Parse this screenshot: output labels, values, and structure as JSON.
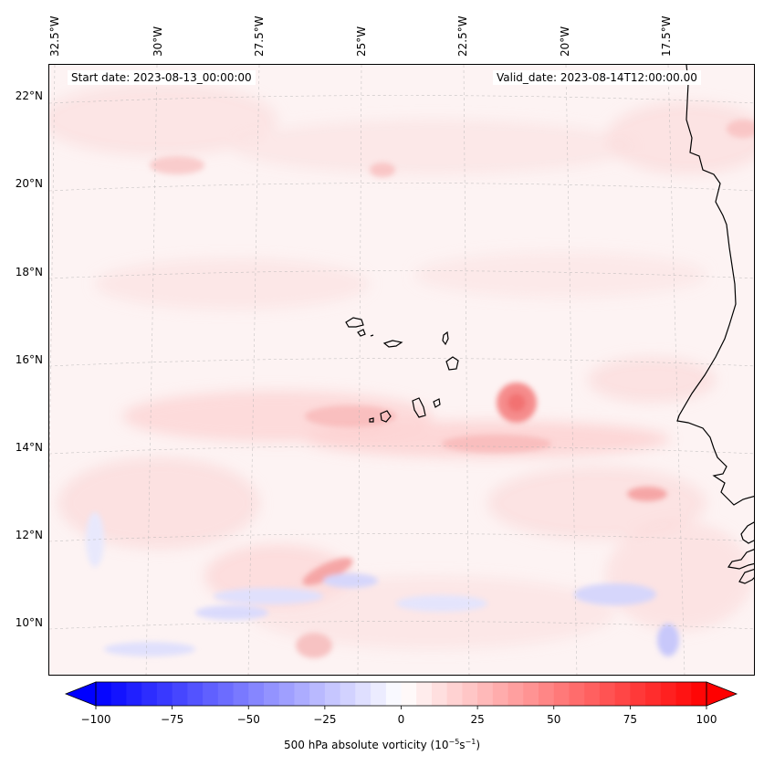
{
  "map": {
    "start_date": "Start date: 2023-08-13_00:00:00",
    "valid_date": "Valid_date: 2023-08-14T12:00:00.00",
    "lon_labels": [
      "32.5°W",
      "30°W",
      "27.5°W",
      "25°W",
      "22.5°W",
      "20°W",
      "17.5°W"
    ],
    "lat_labels": [
      "22°N",
      "20°N",
      "18°N",
      "16°N",
      "14°N",
      "12°N",
      "10°N"
    ],
    "background_color": "#fdf3f3",
    "coast_color": "#000000"
  },
  "colorbar": {
    "label_prefix": "500 hPa absolute vorticity (10",
    "label_sup1": "−5",
    "label_mid": "s",
    "label_sup2": "−1",
    "label_suffix": ")",
    "min": -100,
    "max": 100,
    "ticks": [
      "−100",
      "−75",
      "−50",
      "−25",
      "0",
      "25",
      "50",
      "75",
      "100"
    ],
    "low_color": "#0000ff",
    "mid_color": "#ffffff",
    "high_color": "#ff0000"
  }
}
